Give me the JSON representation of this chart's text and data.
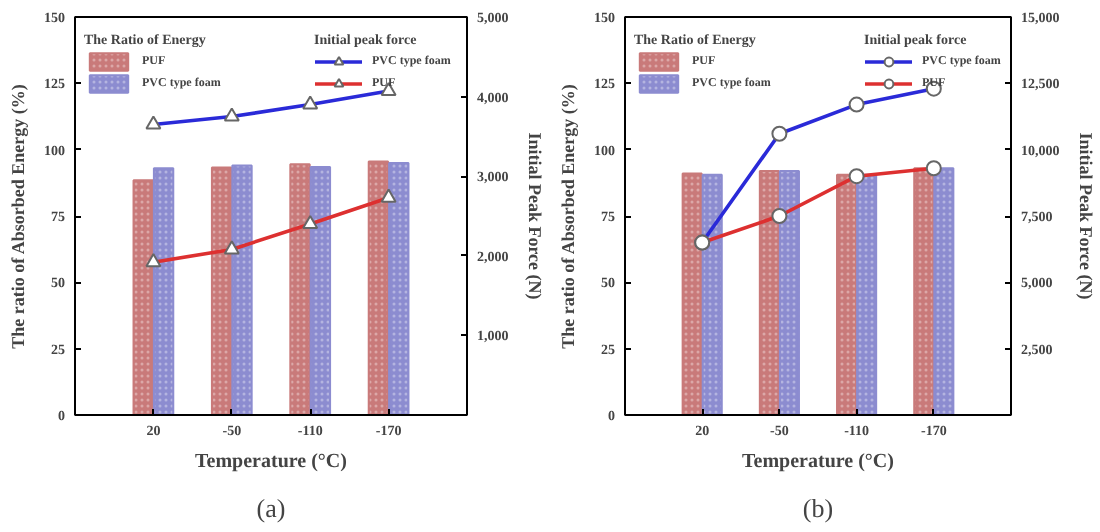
{
  "chart_data": [
    {
      "type": "bar",
      "xlabel": "Temperature (°C)",
      "ylabel": "The ratio of Absorbed Energy (%)",
      "y2label": "Initial Peak Force (N)",
      "legend_title": "The Ratio of Energy",
      "annotations": [
        "Initial peak force",
        "(a)"
      ],
      "categories": [
        "20",
        "-50",
        "-110",
        "-170"
      ],
      "ylim": [
        0,
        150
      ],
      "yticks": [
        0,
        25,
        50,
        75,
        100,
        125,
        150
      ],
      "y2lim": [
        0,
        5000
      ],
      "y2ticks": [
        {
          "value": 1000,
          "label": "1,000"
        },
        {
          "value": 2000,
          "label": "2,000"
        },
        {
          "value": 3000,
          "label": "3,000"
        },
        {
          "value": 4000,
          "label": "4,000"
        },
        {
          "value": 5000,
          "label": "5,000"
        }
      ],
      "legend": "top",
      "grid": false,
      "marker": "triangle",
      "series": [
        {
          "name": "PUF",
          "color": "#c97a7a",
          "values": [
            88.5,
            93.3,
            94.5,
            95.5
          ]
        },
        {
          "name": "PVC type foam",
          "color": "#8c8cd0",
          "values": [
            93,
            94,
            93.5,
            95
          ]
        },
        {
          "name": "PVC type foam",
          "type": "line",
          "axis": "y2",
          "color": "#2a2ad8",
          "values": [
            3650,
            3750,
            3900,
            4070
          ]
        },
        {
          "name": "PUF",
          "type": "line",
          "axis": "y2",
          "color": "#dd3030",
          "values": [
            1920,
            2080,
            2400,
            2730
          ]
        }
      ]
    },
    {
      "type": "bar",
      "xlabel": "Temperature (°C)",
      "ylabel": "The ratio of Absorbed Energy (%)",
      "y2label": "Initial Peak Force (N)",
      "legend_title": "The Ratio of Energy",
      "annotations": [
        "Initial peak force",
        "(b)"
      ],
      "categories": [
        "20",
        "-50",
        "-110",
        "-170"
      ],
      "ylim": [
        0,
        150
      ],
      "yticks": [
        0,
        25,
        50,
        75,
        100,
        125,
        150
      ],
      "y2lim": [
        0,
        15000
      ],
      "y2ticks": [
        {
          "value": 2500,
          "label": "2,500"
        },
        {
          "value": 5000,
          "label": "5,000"
        },
        {
          "value": 7500,
          "label": "7,500"
        },
        {
          "value": 10000,
          "label": "10,000"
        },
        {
          "value": 12500,
          "label": "12,500"
        },
        {
          "value": 15000,
          "label": "15,000"
        }
      ],
      "legend": "top",
      "grid": false,
      "marker": "circle",
      "series": [
        {
          "name": "PUF",
          "color": "#c97a7a",
          "values": [
            91,
            92,
            90.5,
            93
          ]
        },
        {
          "name": "PVC type foam",
          "color": "#8c8cd0",
          "values": [
            90.5,
            92,
            90.5,
            93
          ]
        },
        {
          "name": "PVC type foam",
          "type": "line",
          "axis": "y2",
          "color": "#2a2ad8",
          "values": [
            6500,
            10600,
            11700,
            12300
          ]
        },
        {
          "name": "PUF",
          "type": "line",
          "axis": "y2",
          "color": "#dd3030",
          "values": [
            6500,
            7500,
            9000,
            9300
          ]
        }
      ]
    }
  ]
}
